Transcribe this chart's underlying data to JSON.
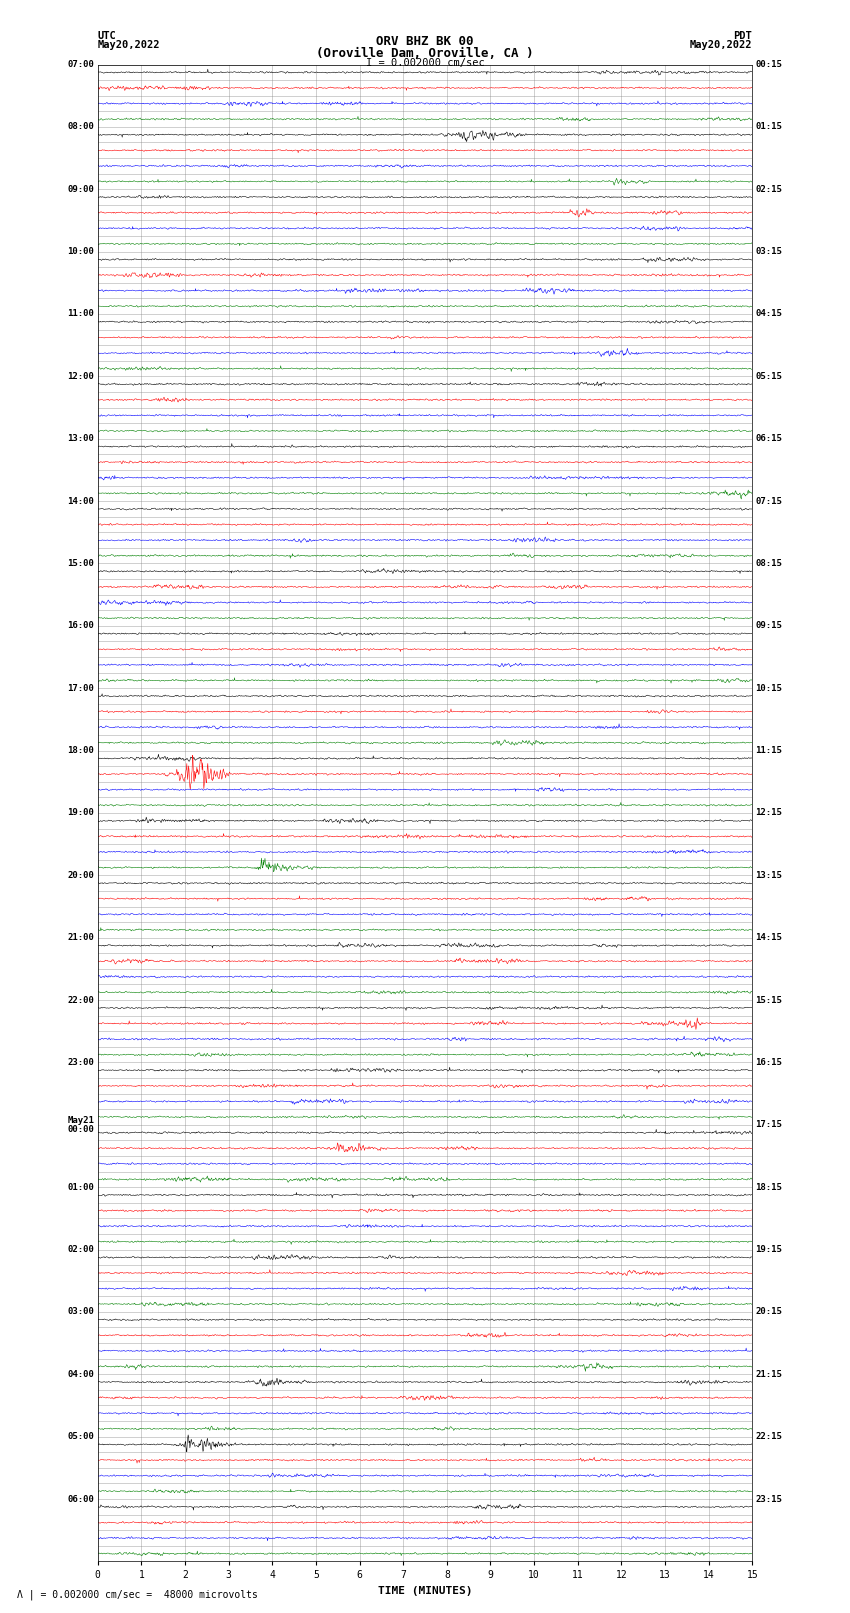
{
  "title_line1": "ORV BHZ BK 00",
  "title_line2": "(Oroville Dam, Oroville, CA )",
  "scale_label": "I = 0.002000 cm/sec",
  "footer_label": "\\u039b | = 0.002000 cm/sec =  48000 microvolts",
  "left_header": "UTC",
  "left_date": "May20,2022",
  "right_header": "PDT",
  "right_date": "May20,2022",
  "xlabel": "TIME (MINUTES)",
  "xmin": 0,
  "xmax": 15,
  "xticks": [
    0,
    1,
    2,
    3,
    4,
    5,
    6,
    7,
    8,
    9,
    10,
    11,
    12,
    13,
    14,
    15
  ],
  "utc_labels": [
    "07:00",
    "08:00",
    "09:00",
    "10:00",
    "11:00",
    "12:00",
    "13:00",
    "14:00",
    "15:00",
    "16:00",
    "17:00",
    "18:00",
    "19:00",
    "20:00",
    "21:00",
    "22:00",
    "23:00",
    "May21|00:00",
    "01:00",
    "02:00",
    "03:00",
    "04:00",
    "05:00",
    "06:00"
  ],
  "pdt_labels": [
    "00:15",
    "01:15",
    "02:15",
    "03:15",
    "04:15",
    "05:15",
    "06:15",
    "07:15",
    "08:15",
    "09:15",
    "10:15",
    "11:15",
    "12:15",
    "13:15",
    "14:15",
    "15:15",
    "16:15",
    "17:15",
    "18:15",
    "19:15",
    "20:15",
    "21:15",
    "22:15",
    "23:15"
  ],
  "trace_colors": [
    "black",
    "red",
    "blue",
    "green"
  ],
  "background_color": "white",
  "grid_color": "#888888",
  "num_hour_rows": 24,
  "traces_per_row": 4,
  "noise_amplitude": 0.04,
  "spike_probability": 0.001,
  "spike_amplitude": 0.15,
  "linewidth": 0.4
}
